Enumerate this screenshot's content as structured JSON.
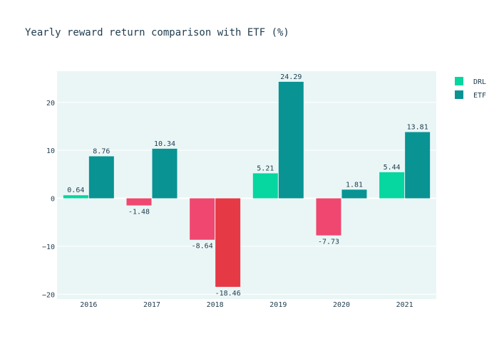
{
  "chart_data": {
    "type": "bar",
    "title": "Yearly reward return comparison with ETF (%)",
    "xlabel": "",
    "ylabel": "",
    "categories": [
      "2016",
      "2017",
      "2018",
      "2019",
      "2020",
      "2021"
    ],
    "ylim": [
      -21,
      26.5
    ],
    "yticks": [
      -20,
      -10,
      0,
      10,
      20
    ],
    "grid": true,
    "legend_position": "top-right",
    "series": [
      {
        "name": "DRL",
        "values": [
          0.64,
          -1.48,
          -8.64,
          5.21,
          -7.73,
          5.44
        ],
        "value_labels": [
          "0.64",
          "-1.48",
          "-8.64",
          "5.21",
          "-7.73",
          "5.44"
        ],
        "color_positive": "#06d6a0",
        "color_negative": "#ef476f",
        "legend_color": "#06d6a0"
      },
      {
        "name": "ETF",
        "values": [
          8.76,
          10.34,
          -18.46,
          24.29,
          1.81,
          13.81
        ],
        "value_labels": [
          "8.76",
          "10.34",
          "-18.46",
          "24.29",
          "1.81",
          "13.81"
        ],
        "color_positive": "#099393",
        "color_negative": "#e63946",
        "legend_color": "#099393"
      }
    ],
    "colors": {
      "plot_background": "#eaf6f6",
      "gridline": "#ffffff",
      "text": "#1f3b4d"
    }
  }
}
